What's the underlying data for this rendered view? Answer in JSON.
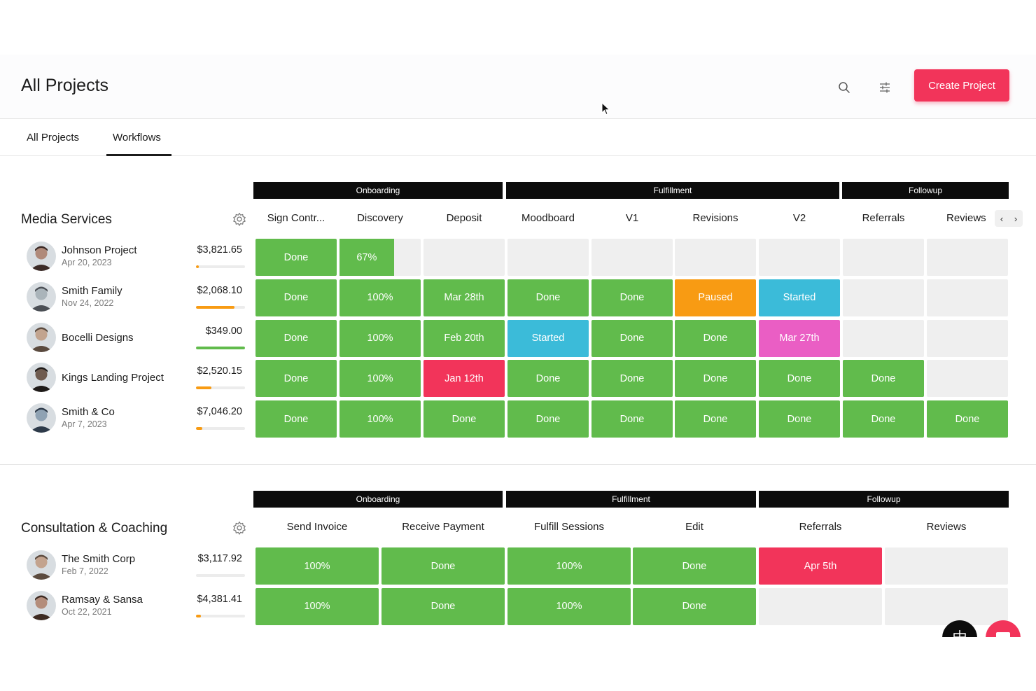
{
  "header": {
    "title": "All Projects",
    "create_label": "Create Project"
  },
  "tabs": [
    {
      "label": "All Projects"
    },
    {
      "label": "Workflows"
    }
  ],
  "colors": {
    "green": "#61bb4c",
    "orange": "#f89b13",
    "blue": "#3bbbd9",
    "pink": "#ea5ec4",
    "red": "#f2345a",
    "empty": "#efefef",
    "stage": "#0c0c0c"
  },
  "sections": [
    {
      "title": "Media Services",
      "stages": [
        "Onboarding",
        "Fulfillment",
        "Followup"
      ],
      "columns": [
        "Sign Contr...",
        "Discovery",
        "Deposit",
        "Moodboard",
        "V1",
        "Revisions",
        "V2",
        "Referrals",
        "Reviews"
      ],
      "projects": [
        {
          "name": "Johnson Project",
          "date": "Apr 20, 2023",
          "amount": "$3,821.65",
          "progress": 0.06,
          "cells": [
            "Done",
            "67%",
            "",
            "",
            "",
            "",
            "",
            "",
            ""
          ]
        },
        {
          "name": "Smith Family",
          "date": "Nov 24, 2022",
          "amount": "$2,068.10",
          "progress": 0.78,
          "cells": [
            "Done",
            "100%",
            "Mar 28th",
            "Done",
            "Done",
            "Paused",
            "Started",
            "",
            ""
          ]
        },
        {
          "name": "Bocelli Designs",
          "date": "",
          "amount": "$349.00",
          "progress": 1.0,
          "cells": [
            "Done",
            "100%",
            "Feb 20th",
            "Started",
            "Done",
            "Done",
            "Mar 27th",
            "",
            ""
          ]
        },
        {
          "name": "Kings Landing Project",
          "date": "",
          "amount": "$2,520.15",
          "progress": 0.32,
          "cells": [
            "Done",
            "100%",
            "Jan 12th",
            "Done",
            "Done",
            "Done",
            "Done",
            "Done",
            ""
          ]
        },
        {
          "name": "Smith & Co",
          "date": "Apr 7, 2023",
          "amount": "$7,046.20",
          "progress": 0.13,
          "cells": [
            "Done",
            "100%",
            "Done",
            "Done",
            "Done",
            "Done",
            "Done",
            "Done",
            "Done"
          ]
        }
      ]
    },
    {
      "title": "Consultation & Coaching",
      "stages": [
        "Onboarding",
        "Fulfillment",
        "Followup"
      ],
      "columns": [
        "Send Invoice",
        "Receive Payment",
        "Fulfill Sessions",
        "Edit",
        "Referrals",
        "Reviews"
      ],
      "projects": [
        {
          "name": "The Smith Corp",
          "date": "Feb 7, 2022",
          "amount": "$3,117.92",
          "progress": 0.0,
          "cells": [
            "100%",
            "Done",
            "100%",
            "Done",
            "Apr 5th",
            ""
          ]
        },
        {
          "name": "Ramsay & Sansa",
          "date": "Oct 22, 2021",
          "amount": "$4,381.41",
          "progress": 0.1,
          "cells": [
            "100%",
            "Done",
            "100%",
            "Done",
            "",
            ""
          ]
        }
      ]
    }
  ]
}
